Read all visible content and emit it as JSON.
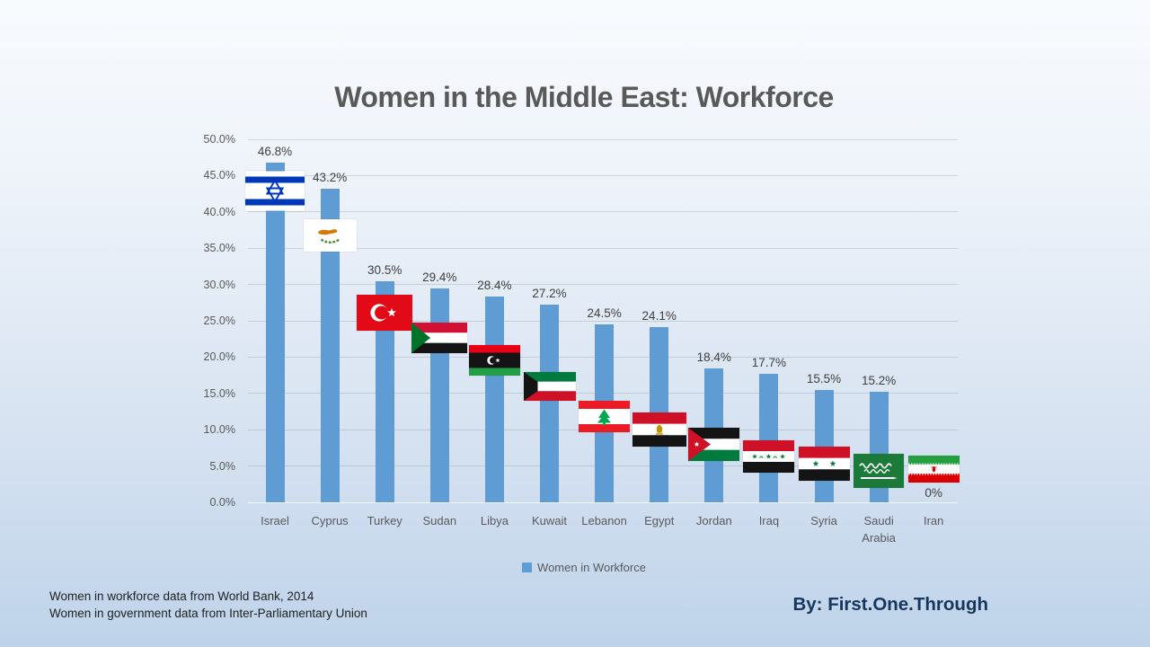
{
  "title": "Women in the Middle East: Workforce",
  "legend": {
    "label": "Women in Workforce"
  },
  "footnotes": [
    "Women in workforce data from World Bank, 2014",
    "Women in government data from Inter-Parliamentary Union"
  ],
  "byline": "By: First.One.Through",
  "colors": {
    "bar": "#5E9CD3",
    "title_text": "#595959",
    "axis_text": "#595959",
    "value_text": "#404040",
    "byline_text": "#17365D",
    "background_top": "#F8FBFE",
    "background_bottom": "#BED3EA"
  },
  "chart_data": {
    "type": "bar",
    "title": "Women in the Middle East: Workforce",
    "categories": [
      "Israel",
      "Cyprus",
      "Turkey",
      "Sudan",
      "Libya",
      "Kuwait",
      "Lebanon",
      "Egypt",
      "Jordan",
      "Iraq",
      "Syria",
      "Saudi Arabia",
      "Iran"
    ],
    "values": [
      46.8,
      43.2,
      30.5,
      29.4,
      28.4,
      27.2,
      24.5,
      24.1,
      18.4,
      17.7,
      15.5,
      15.2,
      0
    ],
    "value_labels": [
      "46.8%",
      "43.2%",
      "30.5%",
      "29.4%",
      "28.4%",
      "27.2%",
      "24.5%",
      "24.1%",
      "18.4%",
      "17.7%",
      "15.5%",
      "15.2%",
      "0%"
    ],
    "series_name": "Women in Workforce",
    "xlabel": "",
    "ylabel": "",
    "ylim": [
      0,
      50
    ],
    "ytick_step": 5,
    "ytick_labels": [
      "0.0%",
      "5.0%",
      "10.0%",
      "15.0%",
      "20.0%",
      "25.0%",
      "30.0%",
      "35.0%",
      "40.0%",
      "45.0%",
      "50.0%"
    ],
    "grid": true,
    "legend_position": "bottom",
    "flags": [
      "israel",
      "cyprus",
      "turkey",
      "sudan",
      "libya",
      "kuwait",
      "lebanon",
      "egypt",
      "jordan",
      "iraq",
      "syria",
      "saudi-arabia",
      "iran"
    ]
  }
}
